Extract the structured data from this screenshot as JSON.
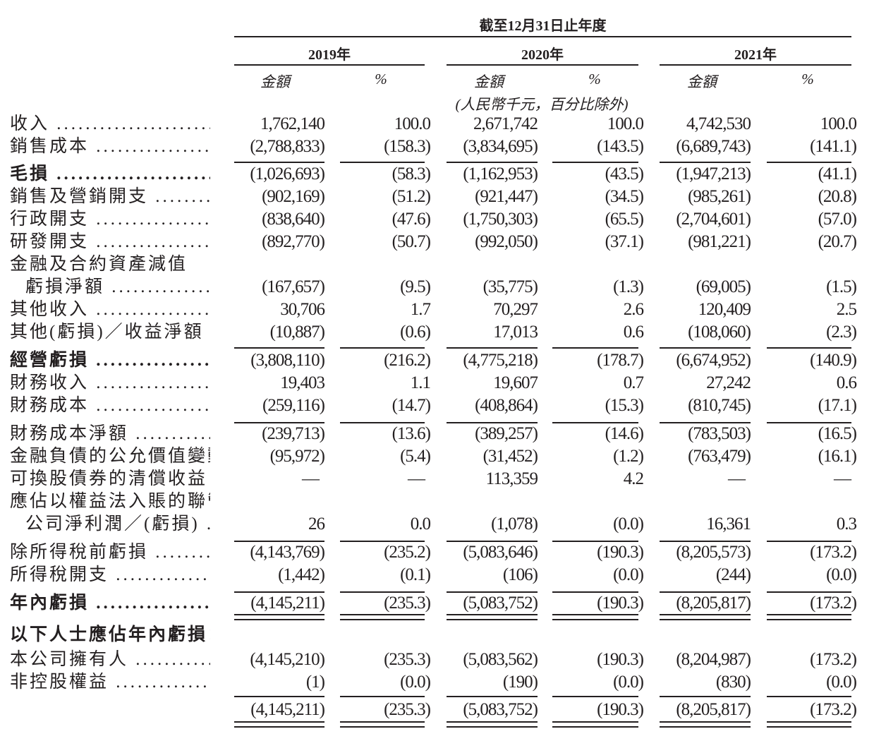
{
  "header": {
    "period": "截至12月31日止年度",
    "years": [
      "2019年",
      "2020年",
      "2021年"
    ],
    "amount_label": "金額",
    "percent_label": "%",
    "unit_note": "(人民幣千元，百分比除外)"
  },
  "rows": [
    {
      "label": "收入",
      "bold": false,
      "values": [
        "1,762,140",
        "100.0",
        "2,671,742",
        "100.0",
        "4,742,530",
        "100.0"
      ]
    },
    {
      "label": "銷售成本",
      "bold": false,
      "values": [
        "(2,788,833)",
        "(158.3)",
        "(3,834,695)",
        "(143.5)",
        "(6,689,743)",
        "(141.1)"
      ]
    },
    {
      "label": "毛損",
      "bold": true,
      "values": [
        "(1,026,693)",
        "(58.3)",
        "(1,162,953)",
        "(43.5)",
        "(1,947,213)",
        "(41.1)"
      ]
    },
    {
      "label": "銷售及營銷開支",
      "bold": false,
      "values": [
        "(902,169)",
        "(51.2)",
        "(921,447)",
        "(34.5)",
        "(985,261)",
        "(20.8)"
      ]
    },
    {
      "label": "行政開支",
      "bold": false,
      "values": [
        "(838,640)",
        "(47.6)",
        "(1,750,303)",
        "(65.5)",
        "(2,704,601)",
        "(57.0)"
      ]
    },
    {
      "label": "研發開支",
      "bold": false,
      "values": [
        "(892,770)",
        "(50.7)",
        "(992,050)",
        "(37.1)",
        "(981,221)",
        "(20.7)"
      ]
    },
    {
      "label": "金融及合約資產減值",
      "bold": false,
      "values": []
    },
    {
      "label": "虧損淨額",
      "bold": false,
      "indent": true,
      "values": [
        "(167,657)",
        "(9.5)",
        "(35,775)",
        "(1.3)",
        "(69,005)",
        "(1.5)"
      ]
    },
    {
      "label": "其他收入",
      "bold": false,
      "values": [
        "30,706",
        "1.7",
        "70,297",
        "2.6",
        "120,409",
        "2.5"
      ]
    },
    {
      "label": "其他(虧損)／收益淨額",
      "bold": false,
      "values": [
        "(10,887)",
        "(0.6)",
        "17,013",
        "0.6",
        "(108,060)",
        "(2.3)"
      ]
    },
    {
      "label": "經營虧損",
      "bold": true,
      "values": [
        "(3,808,110)",
        "(216.2)",
        "(4,775,218)",
        "(178.7)",
        "(6,674,952)",
        "(140.9)"
      ]
    },
    {
      "label": "財務收入",
      "bold": false,
      "values": [
        "19,403",
        "1.1",
        "19,607",
        "0.7",
        "27,242",
        "0.6"
      ]
    },
    {
      "label": "財務成本",
      "bold": false,
      "values": [
        "(259,116)",
        "(14.7)",
        "(408,864)",
        "(15.3)",
        "(810,745)",
        "(17.1)"
      ]
    },
    {
      "label": "財務成本淨額",
      "bold": false,
      "values": [
        "(239,713)",
        "(13.6)",
        "(389,257)",
        "(14.6)",
        "(783,503)",
        "(16.5)"
      ]
    },
    {
      "label": "金融負債的公允價值變動",
      "bold": false,
      "nodots": true,
      "values": [
        "(95,972)",
        "(5.4)",
        "(31,452)",
        "(1.2)",
        "(763,479)",
        "(16.1)"
      ]
    },
    {
      "label": "可換股債券的清償收益",
      "bold": false,
      "nodots": true,
      "values": [
        "—",
        "—",
        "113,359",
        "4.2",
        "—",
        "—"
      ]
    },
    {
      "label": "應佔以權益法入賬的聯營",
      "bold": false,
      "nodots": true,
      "values": []
    },
    {
      "label": "公司淨利潤／(虧損)",
      "bold": false,
      "indent": true,
      "values": [
        "26",
        "0.0",
        "(1,078)",
        "(0.0)",
        "16,361",
        "0.3"
      ]
    },
    {
      "label": "除所得稅前虧損",
      "bold": false,
      "values": [
        "(4,143,769)",
        "(235.2)",
        "(5,083,646)",
        "(190.3)",
        "(8,205,573)",
        "(173.2)"
      ]
    },
    {
      "label": "所得稅開支",
      "bold": false,
      "values": [
        "(1,442)",
        "(0.1)",
        "(106)",
        "(0.0)",
        "(244)",
        "(0.0)"
      ]
    },
    {
      "label": "年內虧損",
      "bold": true,
      "values": [
        "(4,145,211)",
        "(235.3)",
        "(5,083,752)",
        "(190.3)",
        "(8,205,817)",
        "(173.2)"
      ]
    },
    {
      "label": "以下人士應佔年內虧損：",
      "bold": true,
      "nodots": true,
      "values": []
    },
    {
      "label": "本公司擁有人",
      "bold": false,
      "values": [
        "(4,145,210)",
        "(235.3)",
        "(5,083,562)",
        "(190.3)",
        "(8,204,987)",
        "(173.2)"
      ]
    },
    {
      "label": "非控股權益",
      "bold": false,
      "values": [
        "(1)",
        "(0.0)",
        "(190)",
        "(0.0)",
        "(830)",
        "(0.0)"
      ]
    },
    {
      "label": "",
      "bold": false,
      "nodots": true,
      "values": [
        "(4,145,211)",
        "(235.3)",
        "(5,083,752)",
        "(190.3)",
        "(8,205,817)",
        "(173.2)"
      ]
    }
  ]
}
